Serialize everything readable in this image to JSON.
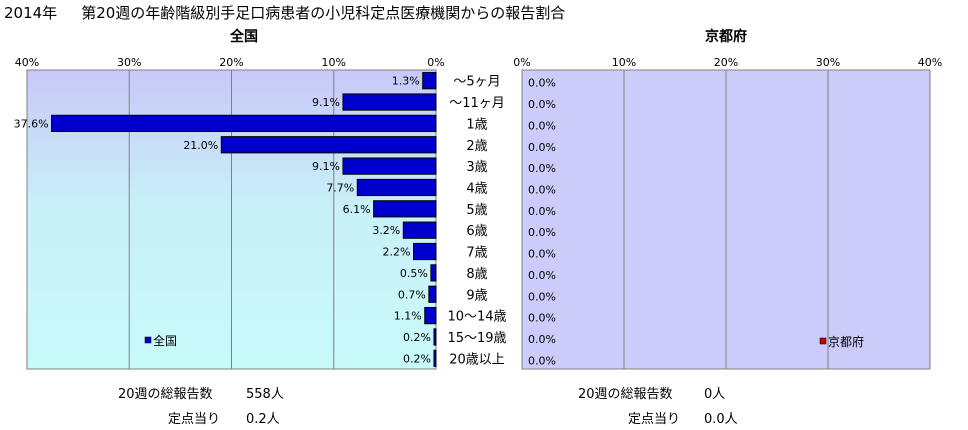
{
  "title": {
    "year": "2014年",
    "text": "第20週の年齢階級別手足口病患者の小児科定点医療機関からの報告割合"
  },
  "chart_data": [
    {
      "type": "bar",
      "orientation": "horizontal",
      "title": "全国",
      "categories": [
        "～5ヶ月",
        "～11ヶ月",
        "1歳",
        "2歳",
        "3歳",
        "4歳",
        "5歳",
        "6歳",
        "7歳",
        "8歳",
        "9歳",
        "10～14歳",
        "15～19歳",
        "20歳以上"
      ],
      "series": [
        {
          "name": "全国",
          "color": "#0000cc",
          "values": [
            1.3,
            9.1,
            37.6,
            21.0,
            9.1,
            7.7,
            6.1,
            3.2,
            2.2,
            0.5,
            0.7,
            1.1,
            0.2,
            0.2
          ],
          "labels": [
            "1.3%",
            "9.1%",
            "37.6%",
            "21.0%",
            "9.1%",
            "7.7%",
            "6.1%",
            "3.2%",
            "2.2%",
            "0.5%",
            "0.7%",
            "1.1%",
            "0.2%",
            "0.2%"
          ]
        }
      ],
      "xlim": [
        0,
        40
      ],
      "x_direction": "reversed",
      "ticks": [
        "40%",
        "30%",
        "20%",
        "10%",
        "0%"
      ],
      "grid": true,
      "legend": "bottom-left",
      "plot_bg": "gradient lavender-to-cyan"
    },
    {
      "type": "bar",
      "orientation": "horizontal",
      "title": "京都府",
      "categories": [
        "～5ヶ月",
        "～11ヶ月",
        "1歳",
        "2歳",
        "3歳",
        "4歳",
        "5歳",
        "6歳",
        "7歳",
        "8歳",
        "9歳",
        "10～14歳",
        "15～19歳",
        "20歳以上"
      ],
      "series": [
        {
          "name": "京都府",
          "color": "#cc0000",
          "values": [
            0,
            0,
            0,
            0,
            0,
            0,
            0,
            0,
            0,
            0,
            0,
            0,
            0,
            0
          ],
          "labels": [
            "0.0%",
            "0.0%",
            "0.0%",
            "0.0%",
            "0.0%",
            "0.0%",
            "0.0%",
            "0.0%",
            "0.0%",
            "0.0%",
            "0.0%",
            "0.0%",
            "0.0%",
            "0.0%"
          ]
        }
      ],
      "xlim": [
        0,
        40
      ],
      "ticks": [
        "0%",
        "10%",
        "20%",
        "30%",
        "40%"
      ],
      "grid": true,
      "legend": "bottom-right",
      "plot_bg": "lavender"
    }
  ],
  "stats": {
    "national": {
      "total_label": "20週の総報告数",
      "total_value": "558人",
      "per_label": "定点当り",
      "per_value": "0.2人"
    },
    "kyoto": {
      "total_label": "20週の総報告数",
      "total_value": "0人",
      "per_label": "定点当り",
      "per_value": "0.0人"
    }
  },
  "colors": {
    "national_bar": "#0000cc",
    "kyoto_bar": "#cc0000",
    "grid": "#808080"
  }
}
